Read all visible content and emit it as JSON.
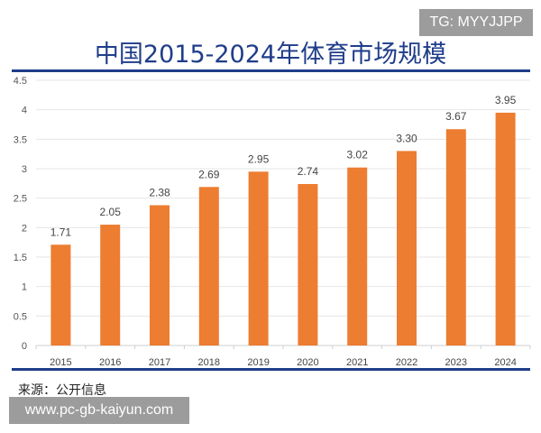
{
  "watermark_top": "TG: MYYJJPP",
  "watermark_bottom": "www.pc-gb-kaiyun.com",
  "source": "来源：公开信息",
  "chart_data": {
    "type": "bar",
    "title": "中国2015-2024年体育市场规模",
    "categories": [
      "2015",
      "2016",
      "2017",
      "2018",
      "2019",
      "2020",
      "2021",
      "2022",
      "2023",
      "2024"
    ],
    "values": [
      1.71,
      2.05,
      2.38,
      2.69,
      2.95,
      2.74,
      3.02,
      3.3,
      3.67,
      3.95
    ],
    "data_labels": [
      "1.71",
      "2.05",
      "2.38",
      "2.69",
      "2.95",
      "2.74",
      "3.02",
      "3.30",
      "3.67",
      "3.95"
    ],
    "yticks": [
      "0",
      "0.5",
      "1",
      "1.5",
      "2",
      "2.5",
      "3",
      "3.5",
      "4",
      "4.5"
    ],
    "ylim": [
      0,
      4.5
    ],
    "grid": true,
    "bar_color": "#ed7d31",
    "title_color": "#1f3d8a"
  }
}
